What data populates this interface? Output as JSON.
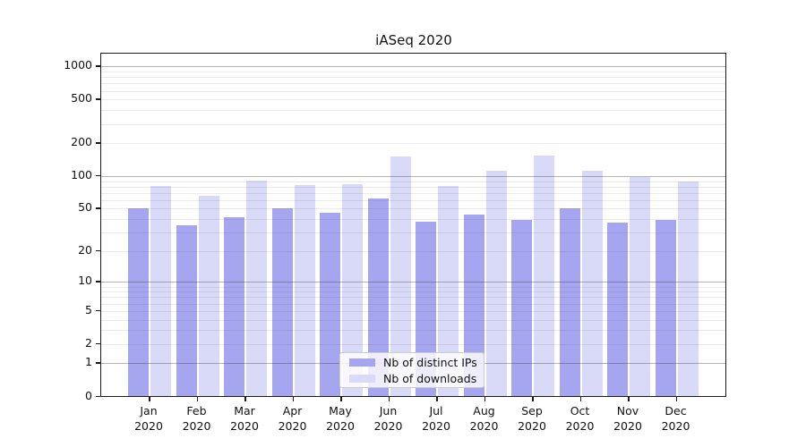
{
  "title": "iASeq 2020",
  "colors": {
    "distinct_ips_bar": "#a5a5f0",
    "downloads_bar": "#d9d9f8",
    "axis": "#1a1a1a",
    "grid_major": "#b3b3b3",
    "grid_minor": "#e6e6e6"
  },
  "legend": {
    "items": [
      {
        "label": "Nb of distinct IPs",
        "color": "#a5a5f0"
      },
      {
        "label": "Nb of downloads",
        "color": "#d9d9f8"
      }
    ]
  },
  "chart_data": {
    "type": "bar",
    "title": "iASeq 2020",
    "categories": [
      "Jan 2020",
      "Feb 2020",
      "Mar 2020",
      "Apr 2020",
      "May 2020",
      "Jun 2020",
      "Jul 2020",
      "Aug 2020",
      "Sep 2020",
      "Oct 2020",
      "Nov 2020",
      "Dec 2020"
    ],
    "series": [
      {
        "name": "Nb of distinct IPs",
        "color": "#a5a5f0",
        "values": [
          50,
          35,
          42,
          50,
          46,
          62,
          38,
          44,
          39,
          50,
          37,
          39
        ]
      },
      {
        "name": "Nb of downloads",
        "color": "#d9d9f8",
        "values": [
          81,
          66,
          91,
          82,
          84,
          151,
          81,
          111,
          153,
          113,
          98,
          90
        ]
      }
    ],
    "xlabel": "",
    "ylabel": "",
    "y_ticks": [
      0,
      1,
      2,
      5,
      10,
      20,
      50,
      100,
      200,
      500,
      1000
    ],
    "y_scale": "log10(1+x)",
    "ylim": [
      0,
      1400
    ],
    "grid": "horizontal log minor and major gridlines drawn over bars",
    "legend_position": "inside lower-center"
  }
}
